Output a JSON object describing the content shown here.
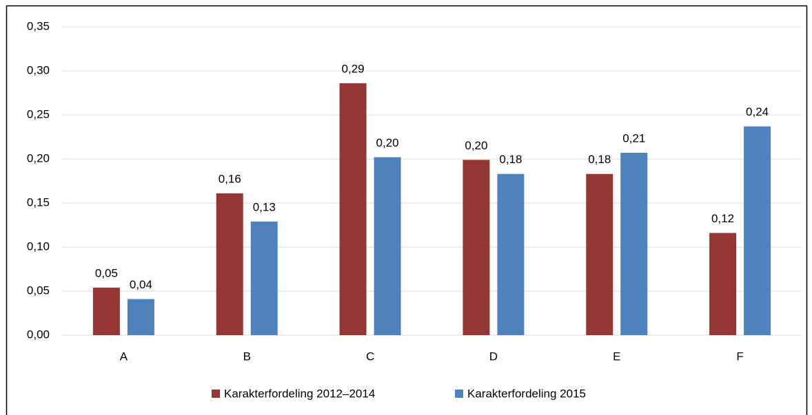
{
  "chart_data": {
    "type": "bar",
    "categories": [
      "A",
      "B",
      "C",
      "D",
      "E",
      "F"
    ],
    "series": [
      {
        "name": "Karakterfordeling 2012–2014",
        "color": "#943634",
        "values": [
          0.054,
          0.161,
          0.286,
          0.199,
          0.183,
          0.116
        ],
        "value_labels": [
          "0,05",
          "0,16",
          "0,29",
          "0,20",
          "0,18",
          "0,12"
        ]
      },
      {
        "name": "Karakterfordeling 2015",
        "color": "#4f81bd",
        "values": [
          0.041,
          0.129,
          0.202,
          0.183,
          0.207,
          0.237
        ],
        "value_labels": [
          "0,04",
          "0,13",
          "0,20",
          "0,18",
          "0,21",
          "0,24"
        ]
      }
    ],
    "ylim": [
      0,
      0.35
    ],
    "yticks": [
      {
        "value": 0,
        "label": "0,00"
      },
      {
        "value": 0.05,
        "label": "0,05"
      },
      {
        "value": 0.1,
        "label": "0,10"
      },
      {
        "value": 0.15,
        "label": "0,15"
      },
      {
        "value": 0.2,
        "label": "0,20"
      },
      {
        "value": 0.25,
        "label": "0,25"
      },
      {
        "value": 0.3,
        "label": "0,30"
      },
      {
        "value": 0.35,
        "label": "0,35"
      }
    ],
    "grid": true,
    "legend": "bottom"
  }
}
